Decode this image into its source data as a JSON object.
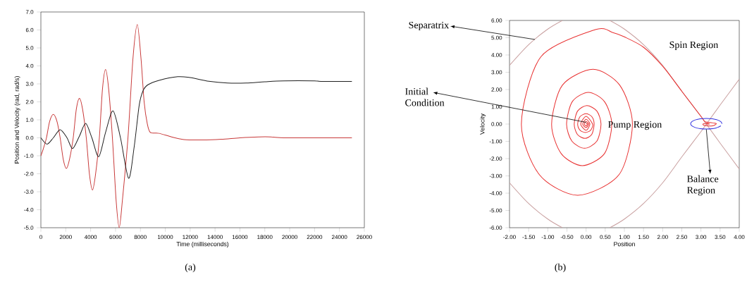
{
  "chart_data": [
    {
      "type": "line",
      "xlabel": "Time (milliseconds)",
      "ylabel": "Position and Velocity (rad, rad/s)",
      "xlim": [
        0,
        26000
      ],
      "ylim": [
        -5,
        7
      ],
      "xticks": [
        0,
        2000,
        4000,
        6000,
        8000,
        10000,
        12000,
        14000,
        16000,
        18000,
        20000,
        22000,
        24000,
        26000
      ],
      "yticks": [
        {
          "value": -5,
          "label": "-5.0"
        },
        {
          "value": -4,
          "label": "-4.0"
        },
        {
          "value": -3,
          "label": "-3.0"
        },
        {
          "value": -2,
          "label": "-2.0"
        },
        {
          "value": -1,
          "label": "-1.0"
        },
        {
          "value": 0,
          "label": "0.0"
        },
        {
          "value": 1,
          "label": "1.0"
        },
        {
          "value": 2,
          "label": "2.0"
        },
        {
          "value": 3,
          "label": "3.0"
        },
        {
          "value": 4,
          "label": "4.0"
        },
        {
          "value": 5,
          "label": "5.0"
        },
        {
          "value": 6,
          "label": "6.0"
        },
        {
          "value": 7,
          "label": "7.0"
        }
      ],
      "series": [
        {
          "color": "#c83a3a",
          "x": [
            0,
            200,
            450,
            700,
            1000,
            1300,
            1550,
            1800,
            2050,
            2300,
            2600,
            2850,
            3100,
            3350,
            3650,
            3900,
            4150,
            4400,
            4700,
            4950,
            5200,
            5450,
            5750,
            6050,
            6300,
            6550,
            7000,
            7400,
            7750,
            8050,
            8300,
            8550,
            8800,
            9500,
            10500,
            11500,
            13000,
            14500,
            16000,
            17500,
            18500,
            19500,
            25000
          ],
          "values": [
            -1.0,
            -0.6,
            0,
            0.9,
            1.3,
            0.9,
            0,
            -1.2,
            -1.7,
            -1.2,
            0,
            1.6,
            2.2,
            1.6,
            0,
            -2.0,
            -2.9,
            -2.0,
            0,
            2.7,
            3.8,
            2.7,
            0,
            -3.5,
            -5.0,
            -3.5,
            0,
            4.4,
            6.3,
            4.4,
            2.0,
            0.8,
            0.3,
            0.25,
            0.05,
            -0.1,
            -0.12,
            -0.08,
            0,
            0.05,
            0.05,
            0,
            0
          ]
        },
        {
          "color": "#202020",
          "x": [
            0,
            500,
            1000,
            1550,
            2100,
            2550,
            3100,
            3600,
            4100,
            4650,
            5200,
            5800,
            6400,
            7050,
            7500,
            7900,
            8200,
            8600,
            9500,
            11000,
            12000,
            13500,
            15000,
            16500,
            18000,
            19500,
            22000,
            22500,
            25000
          ],
          "values": [
            0,
            -0.35,
            0,
            0.45,
            0,
            -0.6,
            0.1,
            0.8,
            0,
            -1.05,
            0.3,
            1.5,
            0,
            -2.25,
            -0.5,
            1.8,
            2.6,
            2.95,
            3.2,
            3.4,
            3.35,
            3.15,
            3.05,
            3.05,
            3.12,
            3.17,
            3.17,
            3.14,
            3.14
          ]
        }
      ],
      "annotations": [
        "(a)"
      ]
    },
    {
      "type": "line",
      "xlabel": "Position",
      "ylabel": "Velocity",
      "xlim": [
        -2,
        4
      ],
      "ylim": [
        -6,
        6
      ],
      "xticks": [
        {
          "value": -2,
          "label": "-2.00"
        },
        {
          "value": -1.5,
          "label": "-1.50"
        },
        {
          "value": -1,
          "label": "-1.00"
        },
        {
          "value": -0.5,
          "label": "-0.50"
        },
        {
          "value": 0,
          "label": "0.00"
        },
        {
          "value": 0.5,
          "label": "0.50"
        },
        {
          "value": 1,
          "label": "1.00"
        },
        {
          "value": 1.5,
          "label": "1.50"
        },
        {
          "value": 2,
          "label": "2.00"
        },
        {
          "value": 2.5,
          "label": "2.50"
        },
        {
          "value": 3,
          "label": "3.00"
        },
        {
          "value": 3.5,
          "label": "3.50"
        },
        {
          "value": 4,
          "label": "4.00"
        }
      ],
      "yticks": [
        {
          "value": -6,
          "label": "-6.00"
        },
        {
          "value": -5,
          "label": "-5.00"
        },
        {
          "value": -4,
          "label": "-4.00"
        },
        {
          "value": -3,
          "label": "-3.00"
        },
        {
          "value": -2,
          "label": "-2.00"
        },
        {
          "value": -1,
          "label": "-1.00"
        },
        {
          "value": 0,
          "label": "0.00"
        },
        {
          "value": 1,
          "label": "1.00"
        },
        {
          "value": 2,
          "label": "2.00"
        },
        {
          "value": 3,
          "label": "3.00"
        },
        {
          "value": 4,
          "label": "4.00"
        },
        {
          "value": 5,
          "label": "5.00"
        },
        {
          "value": 6,
          "label": "6.00"
        }
      ],
      "series": [
        {
          "color": "#c9a0a0",
          "x": [
            -2,
            -1.5,
            -1.0,
            -0.62,
            0,
            0.62,
            1.0,
            1.5,
            2.0,
            2.5,
            3.0,
            3.14,
            3.5,
            4.0
          ],
          "values": [
            3.4,
            4.6,
            5.5,
            6.0,
            null,
            6.0,
            5.5,
            4.6,
            3.4,
            1.9,
            0.44,
            0,
            -1.1,
            -2.6
          ]
        },
        {
          "color": "#c9a0a0",
          "x": [
            -2,
            -1.5,
            -1.0,
            -0.62,
            0,
            0.62,
            1.0,
            1.5,
            2.0,
            2.5,
            3.0,
            3.14,
            3.5,
            4.0
          ],
          "values": [
            -3.4,
            -4.6,
            -5.5,
            -6.0,
            null,
            -6.0,
            -5.5,
            -4.6,
            -3.4,
            -1.9,
            -0.44,
            0,
            1.1,
            2.6
          ]
        },
        {
          "color": "#e83030",
          "x": [
            0,
            0.02,
            0.04,
            0,
            -0.05,
            0,
            0.07,
            0,
            -0.09,
            0,
            0.1,
            0,
            -0.14,
            0,
            0.17,
            0.12,
            -0.02,
            -0.16,
            -0.22,
            -0.16,
            0,
            0.15,
            0.21,
            0.15,
            -0.03,
            -0.23,
            -0.31,
            -0.22,
            0.02,
            0.28,
            0.39,
            0.28,
            -0.04,
            -0.37,
            -0.51,
            -0.36,
            0.06,
            0.48,
            0.67,
            0.48,
            -0.1,
            -0.65,
            -0.9,
            -0.62,
            0.18,
            0.88,
            1.21,
            0.86,
            -0.22,
            -1.22,
            -1.69,
            -1.18,
            0.24,
            0.7,
            1.0,
            1.5,
            2.0,
            2.5,
            3.0,
            3.1,
            3.2,
            3.4,
            3.3,
            3.1,
            3.05,
            3.15,
            3.22,
            3.14
          ],
          "values": [
            0,
            0.05,
            0,
            -0.1,
            0,
            0.15,
            0,
            -0.2,
            0,
            0.28,
            0,
            -0.36,
            0,
            0.45,
            0,
            -0.35,
            -0.49,
            -0.35,
            0,
            0.43,
            0.6,
            0.43,
            0,
            -0.59,
            -0.83,
            -0.59,
            0,
            0.76,
            1.07,
            0.76,
            0,
            -0.99,
            -1.4,
            -0.99,
            0,
            1.3,
            1.84,
            1.3,
            0,
            -1.71,
            -2.41,
            -1.71,
            0,
            2.25,
            3.17,
            2.25,
            0,
            -2.93,
            -4.12,
            -2.93,
            0,
            3.9,
            5.47,
            5.3,
            5.05,
            4.45,
            3.35,
            1.9,
            0.45,
            0.15,
            0.1,
            0.03,
            -0.1,
            -0.08,
            0,
            0.05,
            0,
            0
          ]
        },
        {
          "color": "#3030e0",
          "x": [
            3.55,
            3.52,
            3.43,
            3.3,
            3.14,
            2.98,
            2.85,
            2.76,
            2.73,
            2.76,
            2.85,
            2.98,
            3.14,
            3.3,
            3.43,
            3.52
          ],
          "values": [
            0.02,
            0.14,
            0.24,
            0.31,
            0.33,
            0.31,
            0.24,
            0.14,
            0.02,
            -0.1,
            -0.2,
            -0.27,
            -0.29,
            -0.27,
            -0.2,
            -0.1
          ]
        }
      ],
      "annotations": [
        {
          "text": "Separatrix",
          "x": -1.34,
          "y": 4.9
        },
        {
          "text": "Initial Condition",
          "x": 0,
          "y": 0.1
        },
        {
          "text": "Balance Region",
          "x": 3.14,
          "y": -0.3
        },
        "Spin Region",
        "Pump Region",
        "(b)"
      ]
    }
  ]
}
